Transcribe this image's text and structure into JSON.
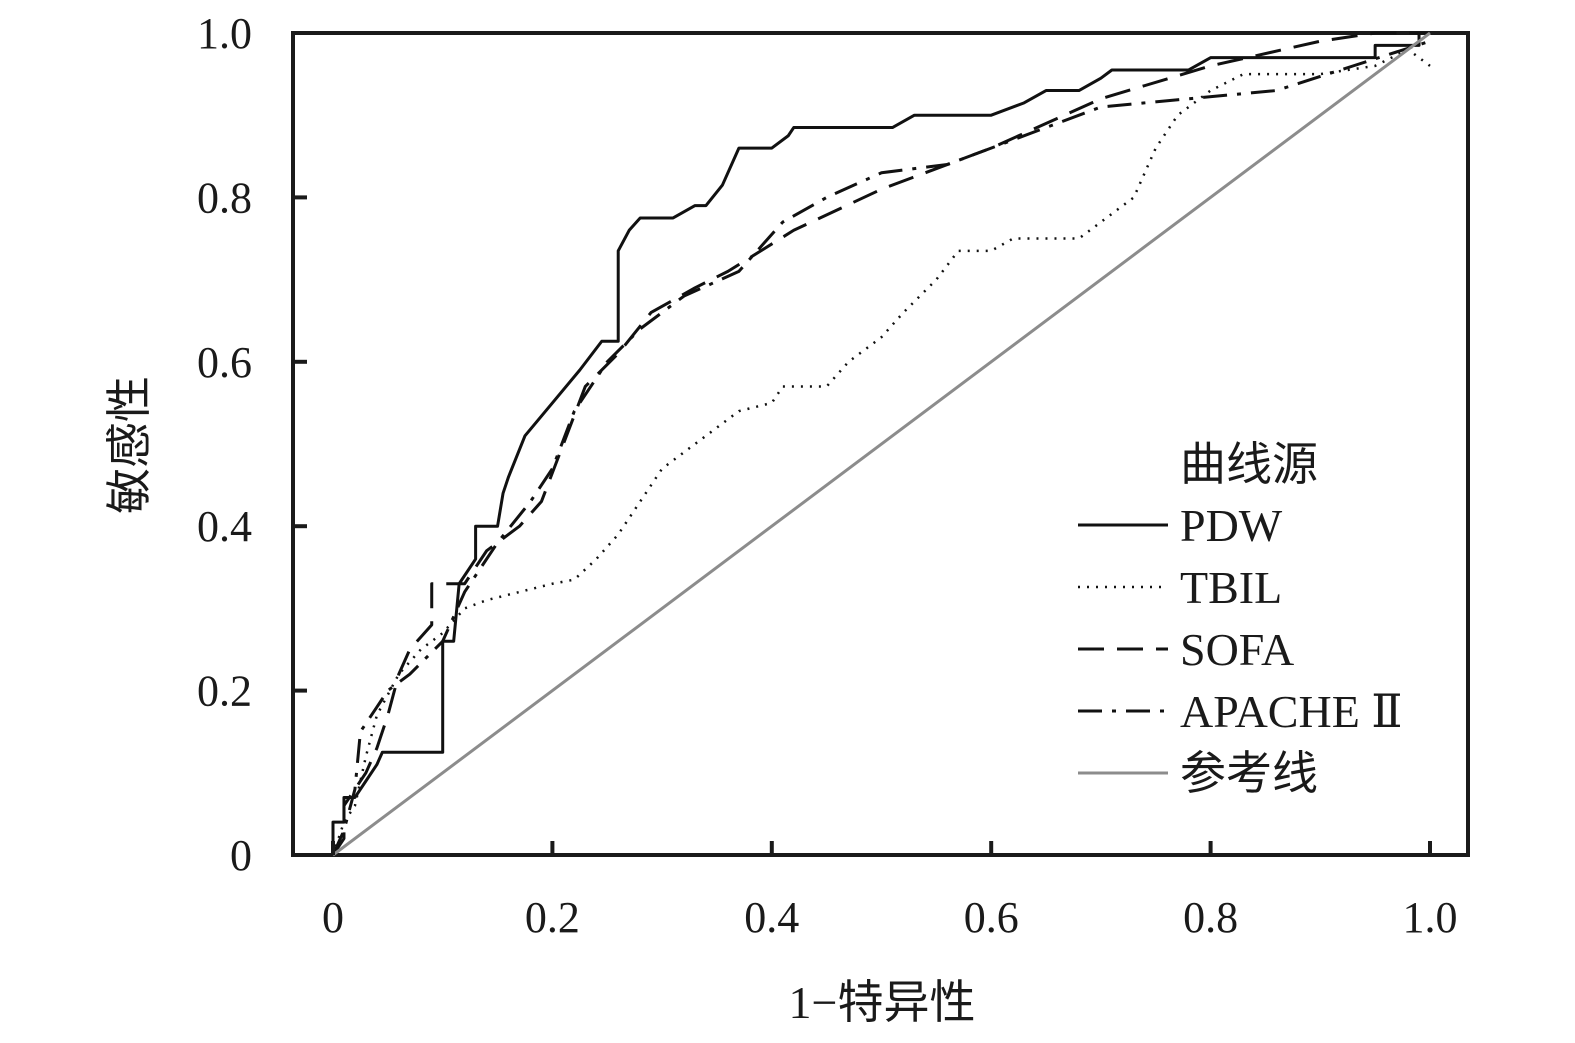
{
  "chart_data": {
    "type": "line",
    "title": "",
    "xlabel": "1−特异性",
    "ylabel": "敏感性",
    "xlim": [
      0,
      1
    ],
    "ylim": [
      0,
      1
    ],
    "x_ticks": [
      "0",
      "0.2",
      "0.4",
      "0.6",
      "0.8",
      "1.0"
    ],
    "y_ticks": [
      "0",
      "0.2",
      "0.4",
      "0.6",
      "0.8",
      "1.0"
    ],
    "grid": false,
    "legend": {
      "title": "曲线源",
      "placement": "right"
    },
    "series": [
      {
        "name": "PDW",
        "style": "solid",
        "color": "#111111",
        "points": [
          [
            0,
            0
          ],
          [
            0,
            0.04
          ],
          [
            0.01,
            0.04
          ],
          [
            0.01,
            0.07
          ],
          [
            0.02,
            0.07
          ],
          [
            0.03,
            0.09
          ],
          [
            0.04,
            0.11
          ],
          [
            0.045,
            0.125
          ],
          [
            0.1,
            0.125
          ],
          [
            0.1,
            0.26
          ],
          [
            0.11,
            0.26
          ],
          [
            0.115,
            0.33
          ],
          [
            0.13,
            0.36
          ],
          [
            0.13,
            0.4
          ],
          [
            0.15,
            0.4
          ],
          [
            0.155,
            0.44
          ],
          [
            0.16,
            0.46
          ],
          [
            0.175,
            0.51
          ],
          [
            0.2,
            0.55
          ],
          [
            0.225,
            0.59
          ],
          [
            0.245,
            0.625
          ],
          [
            0.26,
            0.625
          ],
          [
            0.26,
            0.735
          ],
          [
            0.27,
            0.76
          ],
          [
            0.28,
            0.775
          ],
          [
            0.31,
            0.775
          ],
          [
            0.33,
            0.79
          ],
          [
            0.34,
            0.79
          ],
          [
            0.355,
            0.815
          ],
          [
            0.37,
            0.86
          ],
          [
            0.4,
            0.86
          ],
          [
            0.415,
            0.875
          ],
          [
            0.42,
            0.885
          ],
          [
            0.51,
            0.885
          ],
          [
            0.53,
            0.9
          ],
          [
            0.6,
            0.9
          ],
          [
            0.63,
            0.915
          ],
          [
            0.65,
            0.93
          ],
          [
            0.68,
            0.93
          ],
          [
            0.7,
            0.945
          ],
          [
            0.71,
            0.955
          ],
          [
            0.78,
            0.955
          ],
          [
            0.8,
            0.97
          ],
          [
            0.95,
            0.97
          ],
          [
            0.95,
            0.985
          ],
          [
            0.99,
            0.985
          ],
          [
            0.99,
            1.0
          ],
          [
            1.0,
            1.0
          ]
        ]
      },
      {
        "name": "TBIL",
        "style": "dotted",
        "color": "#111111",
        "points": [
          [
            0,
            0
          ],
          [
            0.01,
            0.04
          ],
          [
            0.02,
            0.06
          ],
          [
            0.025,
            0.09
          ],
          [
            0.03,
            0.12
          ],
          [
            0.04,
            0.17
          ],
          [
            0.06,
            0.22
          ],
          [
            0.08,
            0.25
          ],
          [
            0.1,
            0.27
          ],
          [
            0.12,
            0.3
          ],
          [
            0.14,
            0.31
          ],
          [
            0.2,
            0.33
          ],
          [
            0.22,
            0.335
          ],
          [
            0.24,
            0.36
          ],
          [
            0.26,
            0.39
          ],
          [
            0.28,
            0.43
          ],
          [
            0.3,
            0.47
          ],
          [
            0.32,
            0.49
          ],
          [
            0.35,
            0.52
          ],
          [
            0.37,
            0.54
          ],
          [
            0.4,
            0.55
          ],
          [
            0.41,
            0.57
          ],
          [
            0.45,
            0.57
          ],
          [
            0.47,
            0.6
          ],
          [
            0.5,
            0.63
          ],
          [
            0.52,
            0.66
          ],
          [
            0.55,
            0.7
          ],
          [
            0.57,
            0.735
          ],
          [
            0.6,
            0.735
          ],
          [
            0.62,
            0.75
          ],
          [
            0.68,
            0.75
          ],
          [
            0.7,
            0.77
          ],
          [
            0.73,
            0.8
          ],
          [
            0.74,
            0.83
          ],
          [
            0.75,
            0.86
          ],
          [
            0.77,
            0.9
          ],
          [
            0.8,
            0.93
          ],
          [
            0.83,
            0.95
          ],
          [
            0.9,
            0.95
          ],
          [
            0.95,
            0.96
          ],
          [
            0.98,
            0.98
          ],
          [
            1.0,
            0.96
          ]
        ]
      },
      {
        "name": "SOFA",
        "style": "dashed",
        "color": "#111111",
        "points": [
          [
            0,
            0
          ],
          [
            0.01,
            0.02
          ],
          [
            0.01,
            0.06
          ],
          [
            0.02,
            0.08
          ],
          [
            0.03,
            0.1
          ],
          [
            0.04,
            0.13
          ],
          [
            0.05,
            0.17
          ],
          [
            0.06,
            0.22
          ],
          [
            0.07,
            0.25
          ],
          [
            0.09,
            0.28
          ],
          [
            0.09,
            0.33
          ],
          [
            0.12,
            0.33
          ],
          [
            0.14,
            0.37
          ],
          [
            0.17,
            0.4
          ],
          [
            0.19,
            0.43
          ],
          [
            0.21,
            0.5
          ],
          [
            0.23,
            0.57
          ],
          [
            0.26,
            0.61
          ],
          [
            0.29,
            0.66
          ],
          [
            0.33,
            0.69
          ],
          [
            0.36,
            0.71
          ],
          [
            0.42,
            0.76
          ],
          [
            0.5,
            0.81
          ],
          [
            0.6,
            0.86
          ],
          [
            0.7,
            0.92
          ],
          [
            0.8,
            0.96
          ],
          [
            0.9,
            0.99
          ],
          [
            0.95,
            1.0
          ],
          [
            1.0,
            1.0
          ]
        ]
      },
      {
        "name": "APACHE Ⅱ",
        "style": "dashdot",
        "color": "#111111",
        "points": [
          [
            0,
            0
          ],
          [
            0.01,
            0.03
          ],
          [
            0.02,
            0.08
          ],
          [
            0.025,
            0.15
          ],
          [
            0.04,
            0.18
          ],
          [
            0.05,
            0.2
          ],
          [
            0.07,
            0.22
          ],
          [
            0.1,
            0.26
          ],
          [
            0.12,
            0.32
          ],
          [
            0.15,
            0.38
          ],
          [
            0.18,
            0.43
          ],
          [
            0.2,
            0.47
          ],
          [
            0.22,
            0.54
          ],
          [
            0.25,
            0.6
          ],
          [
            0.28,
            0.64
          ],
          [
            0.32,
            0.68
          ],
          [
            0.37,
            0.71
          ],
          [
            0.41,
            0.77
          ],
          [
            0.45,
            0.8
          ],
          [
            0.5,
            0.83
          ],
          [
            0.56,
            0.84
          ],
          [
            0.62,
            0.87
          ],
          [
            0.7,
            0.91
          ],
          [
            0.78,
            0.92
          ],
          [
            0.86,
            0.93
          ],
          [
            0.93,
            0.96
          ],
          [
            1.0,
            0.99
          ]
        ]
      },
      {
        "name": "参考线",
        "style": "solid",
        "color": "#8c8c8c",
        "points": [
          [
            0,
            0
          ],
          [
            1,
            1
          ]
        ]
      }
    ]
  }
}
